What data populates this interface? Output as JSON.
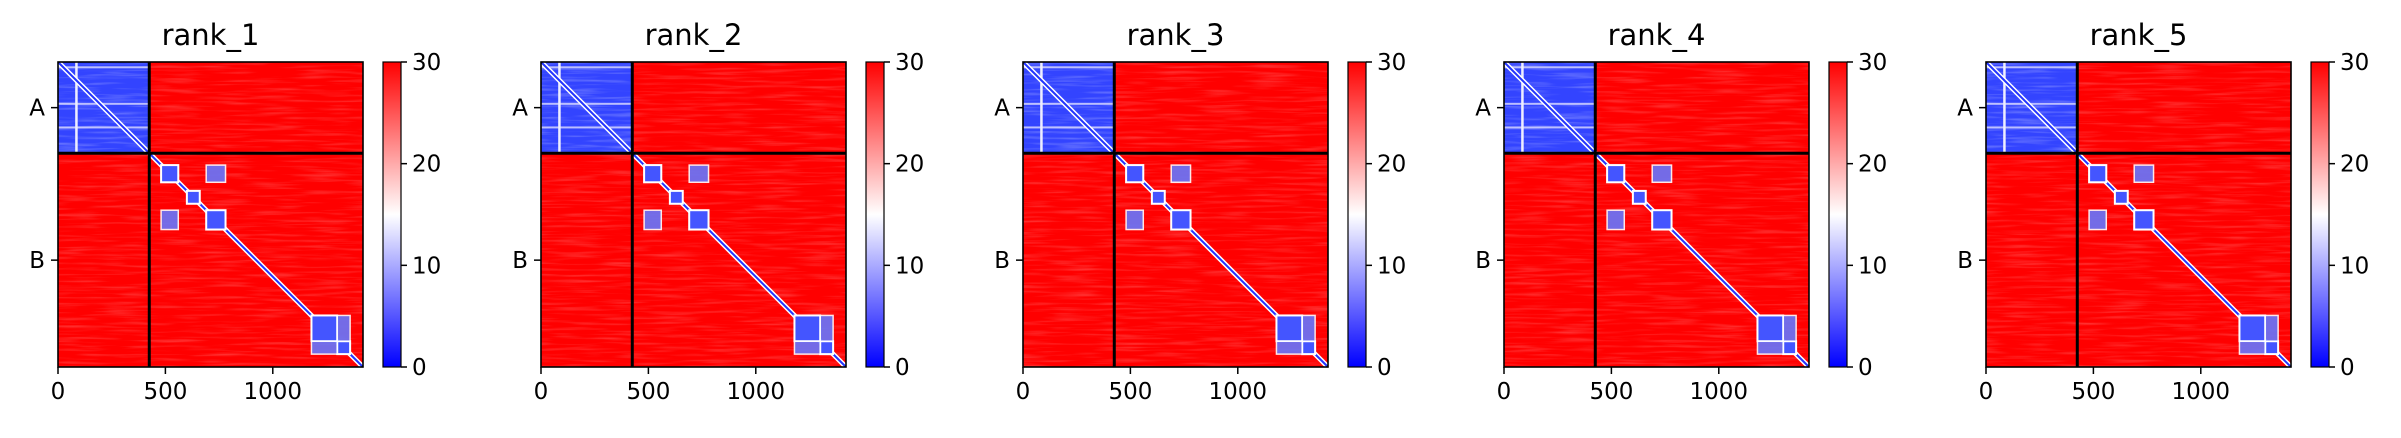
{
  "chart_data": {
    "type": "heatmap",
    "colormap": {
      "name": "bwr",
      "low": "#0000ff",
      "mid": "#ffffff",
      "high": "#ff0000"
    },
    "sequence_length": 1420,
    "chains": [
      {
        "label": "A",
        "start": 0,
        "end": 425
      },
      {
        "label": "B",
        "start": 425,
        "end": 1420
      }
    ],
    "xticks": [
      0,
      500,
      1000
    ],
    "xtick_labels": [
      "0",
      "500",
      "1000"
    ],
    "ytick_labels": [
      "A",
      "B"
    ],
    "vmin": 0,
    "vmax": 30,
    "colorbar_ticks": [
      0,
      10,
      20,
      30
    ],
    "colorbar_tick_labels": [
      "0",
      "10",
      "20",
      "30"
    ],
    "panels": [
      {
        "title": "rank_1"
      },
      {
        "title": "rank_2"
      },
      {
        "title": "rank_3"
      },
      {
        "title": "rank_4"
      },
      {
        "title": "rank_5"
      }
    ]
  }
}
